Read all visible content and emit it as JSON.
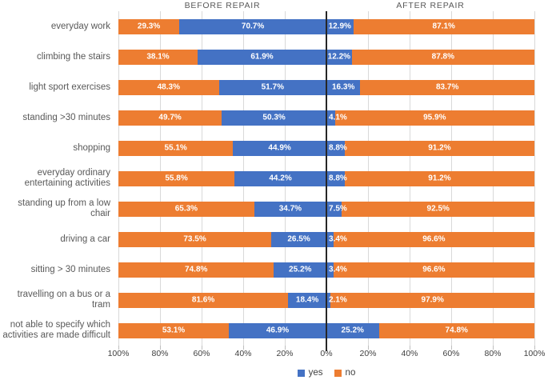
{
  "chart_data": {
    "type": "bar",
    "variant": "diverging-stacked-horizontal",
    "panels": [
      {
        "title": "BEFORE REPAIR"
      },
      {
        "title": "AFTER REPAIR"
      }
    ],
    "categories": [
      "everyday work",
      "climbing the stairs",
      "light sport exercises",
      "standing >30 minutes",
      "shopping",
      "everyday ordinary entertaining activities",
      "standing up from a low chair",
      "driving a car",
      "sitting > 30 minutes",
      "travelling on a bus or a tram",
      "not able to specify which activities are made difficult"
    ],
    "series": [
      {
        "name": "no before",
        "legend": "no",
        "panel": "before",
        "color": "#ED7D31",
        "values": [
          29.3,
          38.1,
          48.3,
          49.7,
          55.1,
          55.8,
          65.3,
          73.5,
          74.8,
          81.6,
          53.1
        ]
      },
      {
        "name": "yes before",
        "legend": "yes",
        "panel": "before",
        "color": "#4472C4",
        "values": [
          70.7,
          61.9,
          51.7,
          50.3,
          44.9,
          44.2,
          34.7,
          26.5,
          25.2,
          18.4,
          46.9
        ]
      },
      {
        "name": "yes after",
        "legend": "yes",
        "panel": "after",
        "color": "#4472C4",
        "values": [
          12.9,
          12.2,
          16.3,
          4.1,
          8.8,
          8.8,
          7.5,
          3.4,
          3.4,
          2.1,
          25.2
        ]
      },
      {
        "name": "no after",
        "legend": "no",
        "panel": "after",
        "color": "#ED7D31",
        "values": [
          87.1,
          87.8,
          83.7,
          95.9,
          91.2,
          91.2,
          92.5,
          96.6,
          96.6,
          97.9,
          74.8
        ]
      }
    ],
    "axis": {
      "tick_labels": [
        "100%",
        "80%",
        "60%",
        "40%",
        "20%",
        "0%",
        "20%",
        "40%",
        "60%",
        "80%",
        "100%"
      ],
      "range_each_side": [
        0,
        100
      ],
      "gridlines": true
    },
    "legend": [
      {
        "label": "yes",
        "color": "#4472C4"
      },
      {
        "label": "no",
        "color": "#ED7D31"
      }
    ],
    "data_label_format": "percent_1dp"
  },
  "colors": {
    "yes": "#4472C4",
    "no": "#ED7D31",
    "gridline": "#d9d9d9",
    "tick": "#bfbfbf",
    "center_line": "#262626",
    "category_text": "#595959",
    "axis_text": "#404040",
    "panel_title_text": "#595959",
    "bar_label_text": "#ffffff",
    "background": "#ffffff"
  }
}
